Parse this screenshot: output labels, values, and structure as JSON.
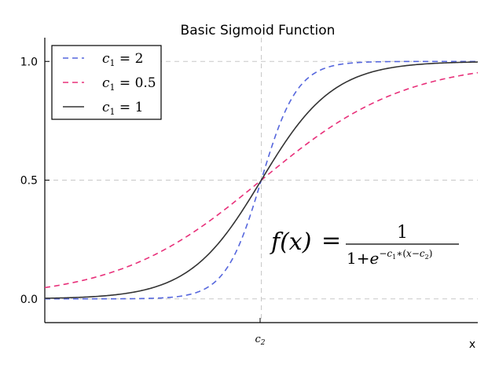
{
  "chart_data": {
    "type": "line",
    "title": "Basic Sigmoid Function",
    "xlabel": "x",
    "ylabel": "",
    "x_center_tick_label": "c2",
    "y_ticks": [
      0.0,
      0.5,
      1.0
    ],
    "y_tick_labels": [
      "0.0",
      "0.5",
      "1.0"
    ],
    "ylim": [
      -0.1,
      1.1
    ],
    "xlim": [
      -6,
      6
    ],
    "x_center": 0,
    "grid": "dashed gray at y ticks and at x = c2",
    "legend_position": "top-left",
    "formula": "f(x) = 1 / (1 + e^(-c1*(x - c2)))",
    "series": [
      {
        "name": "c1 = 2",
        "c1": 2,
        "style": "dashed",
        "color": "#5566dd"
      },
      {
        "name": "c1 = 0.5",
        "c1": 0.5,
        "style": "dashed",
        "color": "#e8307a"
      },
      {
        "name": "c1 = 1",
        "c1": 1,
        "style": "solid",
        "color": "#333333"
      }
    ],
    "legend": [
      {
        "series": "c1 = 2",
        "c_value": "2"
      },
      {
        "series": "c1 = 0.5",
        "c_value": "0.5"
      },
      {
        "series": "c1 = 1",
        "c_value": "1"
      }
    ]
  },
  "colors": {
    "grid": "#c8c8c8",
    "axis": "#000000"
  }
}
